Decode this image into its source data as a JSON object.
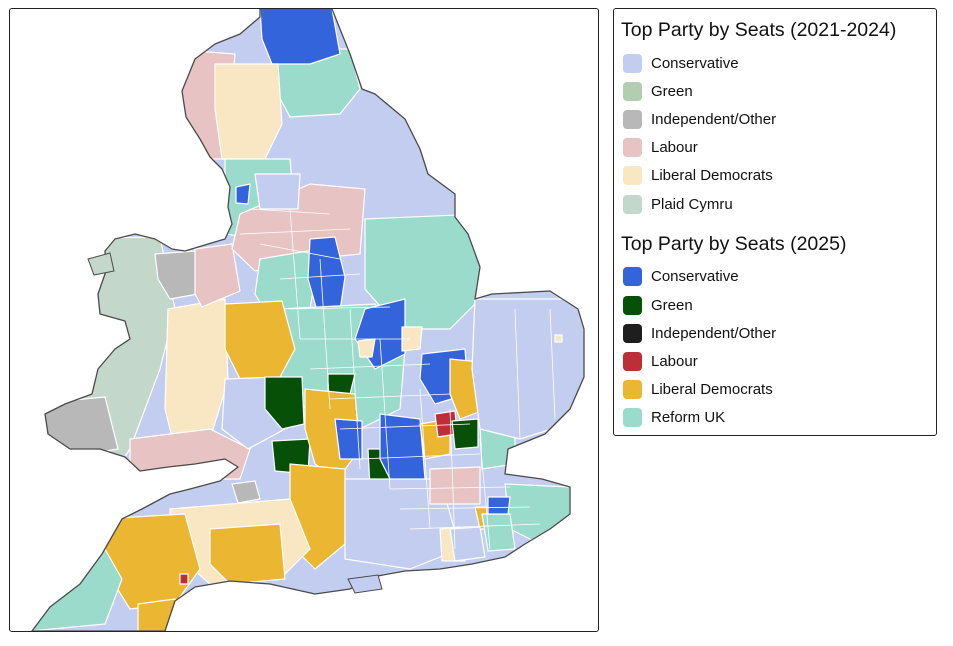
{
  "legend": {
    "group1": {
      "title": "Top Party by Seats (2021-2024)",
      "items": [
        {
          "label": "Conservative",
          "color": "#c3cdf0"
        },
        {
          "label": "Green",
          "color": "#b3cdb0"
        },
        {
          "label": "Independent/Other",
          "color": "#b8b8b8"
        },
        {
          "label": "Labour",
          "color": "#e8c3c3"
        },
        {
          "label": "Liberal Democrats",
          "color": "#f8e7c2"
        },
        {
          "label": "Plaid Cymru",
          "color": "#c3d8cb"
        }
      ]
    },
    "group2": {
      "title": "Top Party by Seats (2025)",
      "items": [
        {
          "label": "Conservative",
          "color": "#3464dc"
        },
        {
          "label": "Green",
          "color": "#075008"
        },
        {
          "label": "Independent/Other",
          "color": "#1e1e1e"
        },
        {
          "label": "Labour",
          "color": "#bd2f36"
        },
        {
          "label": "Liberal Democrats",
          "color": "#ebb733"
        },
        {
          "label": "Reform UK",
          "color": "#9adbcb"
        }
      ]
    }
  }
}
